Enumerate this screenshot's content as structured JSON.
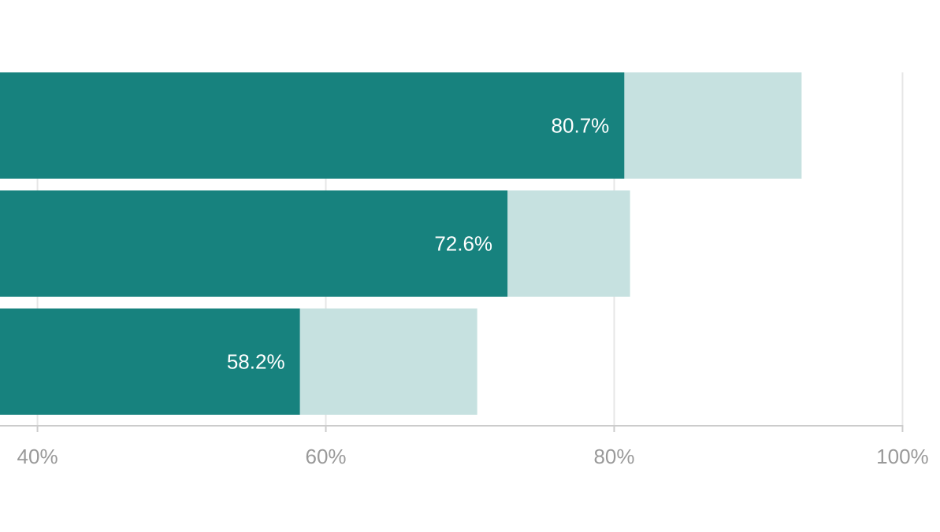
{
  "chart_data": {
    "type": "bar",
    "orientation": "horizontal",
    "series": [
      {
        "color": "#c6e1e0",
        "values": [
          93.0,
          81.1,
          70.5
        ]
      },
      {
        "color": "#17827e",
        "values": [
          80.7,
          72.6,
          58.2
        ],
        "value_labels": [
          "80.7%",
          "72.6%",
          "58.2%"
        ]
      }
    ],
    "xlim": [
      37.4,
      102.6
    ],
    "xticks": [
      {
        "value": 40,
        "label": "40%"
      },
      {
        "value": 60,
        "label": "60%"
      },
      {
        "value": 80,
        "label": "80%"
      },
      {
        "value": 100,
        "label": "100%"
      }
    ],
    "grid": true
  }
}
